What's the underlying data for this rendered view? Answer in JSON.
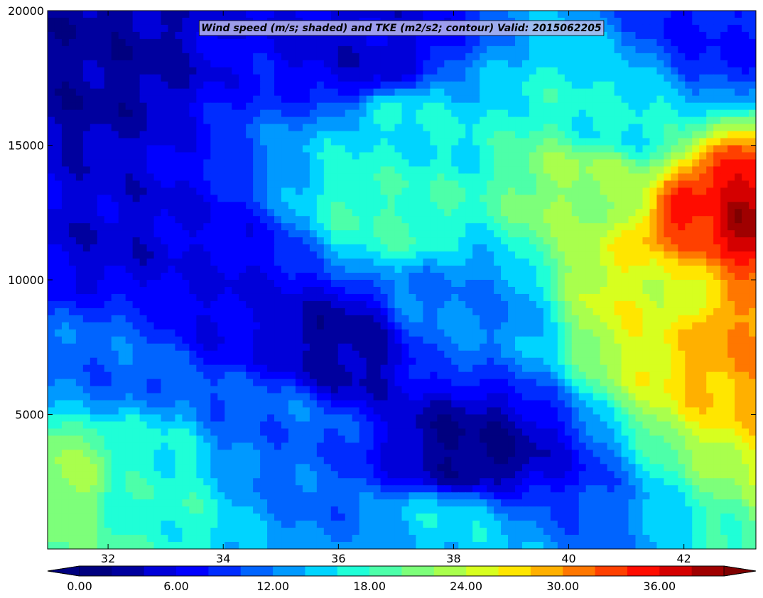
{
  "chart_data": {
    "type": "heatmap",
    "title": "Wind speed (m/s; shaded) and TKE (m2/s2; contour) Valid: 2015062205",
    "xlabel": "",
    "ylabel": "",
    "xlim": [
      30.95,
      43.25
    ],
    "ylim": [
      0,
      20000
    ],
    "x_ticks": [
      "32",
      "34",
      "36",
      "38",
      "40",
      "42"
    ],
    "y_ticks": [
      "5000",
      "10000",
      "15000",
      "20000"
    ],
    "grid": false,
    "colorbar": {
      "orientation": "horizontal",
      "extend": "both",
      "levels_min": 0,
      "levels_step": 2,
      "tick_labels": [
        "0.00",
        "6.00",
        "12.00",
        "18.00",
        "24.00",
        "30.00",
        "36.00"
      ],
      "colors": [
        "#00007f",
        "#00009e",
        "#0000d9",
        "#0000ff",
        "#002cff",
        "#0064ff",
        "#0099ff",
        "#00d4ff",
        "#1fffd7",
        "#4dffa9",
        "#7dff7a",
        "#a9ff4d",
        "#d7ff1f",
        "#ffe600",
        "#ffb000",
        "#ff7700",
        "#ff4000",
        "#ff0c00",
        "#d40000",
        "#9f0000"
      ],
      "under_color": "#00007f",
      "over_color": "#7f0000"
    },
    "field_features": [
      {
        "x": 43.0,
        "y": 12300,
        "value": 39
      },
      {
        "x": 42.5,
        "y": 12300,
        "value": 34
      },
      {
        "x": 43.0,
        "y": 8500,
        "value": 30
      },
      {
        "x": 41.8,
        "y": 9500,
        "value": 25
      },
      {
        "x": 40.5,
        "y": 13500,
        "value": 22
      },
      {
        "x": 41.0,
        "y": 16000,
        "value": 16
      },
      {
        "x": 37.2,
        "y": 15500,
        "value": 16
      },
      {
        "x": 37.0,
        "y": 12500,
        "value": 18
      },
      {
        "x": 38.0,
        "y": 9000,
        "value": 12
      },
      {
        "x": 36.0,
        "y": 7500,
        "value": 3
      },
      {
        "x": 38.2,
        "y": 3300,
        "value": 2
      },
      {
        "x": 32.0,
        "y": 7000,
        "value": 11
      },
      {
        "x": 31.4,
        "y": 2600,
        "value": 22
      },
      {
        "x": 32.5,
        "y": 2400,
        "value": 17
      },
      {
        "x": 38.0,
        "y": 1000,
        "value": 15
      },
      {
        "x": 31.5,
        "y": 18000,
        "value": 3
      },
      {
        "x": 36.5,
        "y": 18500,
        "value": 5
      },
      {
        "x": 32.0,
        "y": 11500,
        "value": 5
      },
      {
        "x": 42.5,
        "y": 19000,
        "value": 8
      },
      {
        "x": 35.0,
        "y": 4500,
        "value": 11
      },
      {
        "x": 34.0,
        "y": 9500,
        "value": 6
      }
    ]
  }
}
